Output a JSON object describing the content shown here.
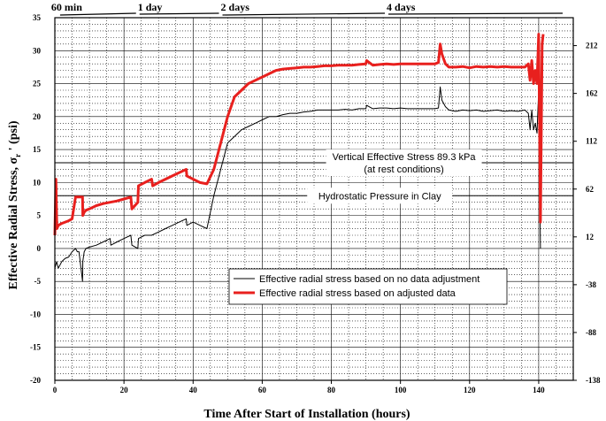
{
  "chart_data": {
    "type": "line",
    "xlabel": "Time After Start of Installation (hours)",
    "ylabel": "Effective Radial Stress, σr ' (psi)",
    "ylabel_main": "Effective Radial Stress, σ",
    "ylabel_sub": "r",
    "ylabel_tail": " ' (psi)",
    "xlim": [
      0,
      150
    ],
    "ylim": [
      -20,
      35
    ],
    "y2lim": [
      -138,
      241.2
    ],
    "grid": true,
    "legend_position": "bottom-right",
    "x_ticks": [
      0,
      20,
      40,
      60,
      80,
      100,
      120,
      140
    ],
    "y_ticks": [
      -20,
      -15,
      -10,
      -5,
      0,
      5,
      10,
      15,
      20,
      25,
      30,
      35
    ],
    "y2_ticks": [
      -138,
      -88,
      -38,
      12,
      62,
      112,
      162,
      212
    ],
    "time_labels": [
      {
        "label": "60 min",
        "x": 1
      },
      {
        "label": "1 day",
        "x": 24
      },
      {
        "label": "2 days",
        "x": 48
      },
      {
        "label": "4 days",
        "x": 96
      }
    ],
    "reference_lines": [
      {
        "y": 13,
        "label": "Vertical Effective Stress 89.3 kPa",
        "sublabel": "(at rest conditions)",
        "label_x": 101
      },
      {
        "y": 8,
        "label": "Hydrostatic Pressure in Clay",
        "label_x": 94
      }
    ],
    "series": [
      {
        "name": "Effective radial stress based on no data adjustment",
        "color": "#000000",
        "width": 1,
        "x": [
          0,
          0.5,
          1,
          2,
          3,
          4,
          5,
          6,
          6.5,
          7,
          8,
          8.1,
          8.5,
          9,
          10,
          12,
          14,
          16,
          16.2,
          18,
          20,
          22,
          22.3,
          24,
          24.2,
          26,
          28,
          30,
          32,
          34,
          36,
          38,
          38.2,
          40,
          42,
          44,
          46,
          48,
          50,
          52,
          54,
          56,
          58,
          60,
          62,
          64,
          66,
          68,
          70,
          72,
          74,
          76,
          78,
          80,
          82,
          84,
          86,
          88,
          90,
          90.2,
          92,
          94,
          96,
          98,
          100,
          102,
          104,
          106,
          108,
          110,
          111,
          111.5,
          112,
          113,
          114,
          116,
          118,
          120,
          122,
          124,
          126,
          128,
          130,
          132,
          134,
          136,
          137,
          137.5,
          138,
          138.5,
          139,
          139.5,
          140,
          140.5
        ],
        "y": [
          -3,
          -2,
          -3,
          -2,
          -1.5,
          -1.3,
          -0.5,
          0,
          -0.5,
          -0.5,
          -5,
          -2,
          -0.5,
          0,
          0.2,
          0.5,
          1,
          1.5,
          0.5,
          1,
          1.5,
          2,
          0.5,
          0,
          1.5,
          2,
          2,
          2.5,
          3,
          3.5,
          4,
          4.5,
          3.5,
          4,
          3.5,
          3,
          8,
          12,
          16,
          17,
          18,
          18.5,
          19,
          19.5,
          20,
          20,
          20.3,
          20.5,
          20.5,
          20.7,
          20.8,
          21,
          21,
          21,
          21,
          21.1,
          21,
          21.2,
          21.2,
          21.7,
          21.2,
          21.3,
          21.3,
          21.2,
          21.3,
          21.2,
          21.2,
          21.2,
          21.2,
          21.2,
          21.3,
          24.5,
          22.5,
          21.5,
          21,
          20.8,
          21,
          20.9,
          21,
          20.8,
          20.9,
          21,
          20.8,
          20.9,
          20.8,
          21,
          20.5,
          18,
          21,
          18,
          19,
          17.5,
          24,
          0
        ]
      },
      {
        "name": "Effective radial stress based on adjusted data",
        "color": "#e8201e",
        "width": 3,
        "x": [
          0,
          0.3,
          0.6,
          1,
          2,
          3,
          4,
          5,
          6,
          7,
          8,
          8.1,
          8.5,
          9,
          10,
          12,
          14,
          16,
          18,
          20,
          22,
          22.3,
          24,
          24.2,
          26,
          28,
          28.3,
          30,
          32,
          34,
          36,
          38,
          38.2,
          40,
          42,
          44,
          46,
          48,
          50,
          52,
          54,
          56,
          58,
          60,
          62,
          64,
          66,
          68,
          70,
          72,
          74,
          76,
          78,
          80,
          82,
          84,
          86,
          88,
          90,
          90.2,
          92,
          94,
          96,
          98,
          100,
          102,
          104,
          106,
          108,
          110,
          111,
          111.5,
          112,
          113,
          114,
          116,
          118,
          120,
          122,
          124,
          126,
          128,
          130,
          132,
          134,
          136,
          137,
          137.5,
          138,
          138.5,
          139,
          139.5,
          140,
          140.5,
          141,
          141.3
        ],
        "y": [
          2,
          10.5,
          3,
          3.5,
          3.8,
          4,
          4.2,
          4.5,
          7.8,
          7.8,
          7.8,
          5,
          5.5,
          5.8,
          6,
          6.5,
          6.8,
          7,
          7.2,
          7.5,
          7.8,
          6,
          7,
          9.5,
          10,
          10.5,
          9.5,
          10,
          10.5,
          11,
          11.5,
          12,
          11,
          10.5,
          10,
          9.8,
          12,
          16,
          20,
          23,
          24,
          25,
          25.5,
          26,
          26.5,
          27,
          27.2,
          27.3,
          27.4,
          27.5,
          27.5,
          27.6,
          27.7,
          27.7,
          27.8,
          27.8,
          27.8,
          27.9,
          28,
          28.5,
          27.8,
          27.9,
          28,
          27.9,
          28,
          28,
          28,
          28,
          28,
          28,
          28.2,
          31,
          29.5,
          28,
          27.5,
          27.5,
          27.6,
          27.4,
          27.6,
          27.5,
          27.6,
          27.5,
          27.6,
          27.5,
          27.5,
          27.5,
          28,
          25.5,
          28.5,
          25,
          27,
          25,
          32.5,
          4,
          31,
          32.5
        ]
      }
    ]
  }
}
